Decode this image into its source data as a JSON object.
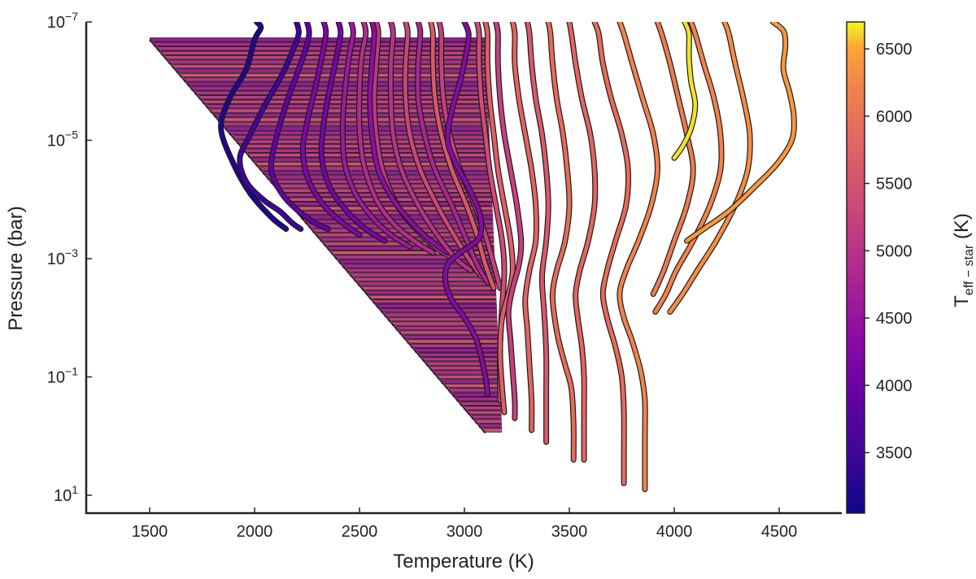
{
  "chart_data": {
    "type": "line",
    "xlabel": "Temperature (K)",
    "ylabel": "Pressure (bar)",
    "xlim": [
      1200,
      4800
    ],
    "ylim_log10": [
      -7,
      1.3
    ],
    "y_scale": "log",
    "x_ticks": [
      {
        "value": 1500,
        "label": "1500"
      },
      {
        "value": 2000,
        "label": "2000"
      },
      {
        "value": 2500,
        "label": "2500"
      },
      {
        "value": 3000,
        "label": "3000"
      },
      {
        "value": 3500,
        "label": "3500"
      },
      {
        "value": 4000,
        "label": "4000"
      },
      {
        "value": 4500,
        "label": "4500"
      }
    ],
    "y_ticks": [
      {
        "exp": -7,
        "base": "10",
        "sup": "−7"
      },
      {
        "exp": -5,
        "base": "10",
        "sup": "−5"
      },
      {
        "exp": -3,
        "base": "10",
        "sup": "−3"
      },
      {
        "exp": -1,
        "base": "10",
        "sup": "−1"
      },
      {
        "exp": 1,
        "base": "10",
        "sup": "1"
      }
    ],
    "colorbar": {
      "label_main": "T",
      "label_sub": "eff − star",
      "label_unit": " (K)",
      "range": [
        3050,
        6700
      ],
      "colormap": "plasma",
      "ticks": [
        {
          "value": 3500,
          "label": "3500"
        },
        {
          "value": 4000,
          "label": "4000"
        },
        {
          "value": 4500,
          "label": "4500"
        },
        {
          "value": 5000,
          "label": "5000"
        },
        {
          "value": 5500,
          "label": "5500"
        },
        {
          "value": 6000,
          "label": "6000"
        },
        {
          "value": 6500,
          "label": "6500"
        }
      ]
    },
    "series": [
      {
        "teff": 3200,
        "x": [
          2010,
          2030,
          2000,
          1960,
          1880,
          1840,
          1900,
          1980,
          2080,
          2150
        ],
        "y": [
          -7,
          -6.9,
          -6.7,
          -6.2,
          -5.7,
          -5.2,
          -4.6,
          -4.1,
          -3.7,
          -3.5
        ]
      },
      {
        "teff": 3500,
        "x": [
          2200,
          2210,
          2180,
          2130,
          2050,
          1980,
          1930,
          1960,
          2040,
          2120,
          2180,
          2220
        ],
        "y": [
          -7,
          -6.8,
          -6.5,
          -6.1,
          -5.6,
          -5.1,
          -4.7,
          -4.3,
          -4.0,
          -3.8,
          -3.6,
          -3.5
        ]
      },
      {
        "teff": 3900,
        "x": [
          2250,
          2260,
          2240,
          2200,
          2150,
          2100,
          2080,
          2130,
          2210,
          2290,
          2350
        ],
        "y": [
          -7,
          -6.8,
          -6.5,
          -6.1,
          -5.6,
          -5.0,
          -4.5,
          -4.1,
          -3.8,
          -3.6,
          -3.5
        ]
      },
      {
        "teff": 4200,
        "x": [
          2330,
          2340,
          2320,
          2290,
          2250,
          2230,
          2260,
          2330,
          2420,
          2500
        ],
        "y": [
          -7,
          -6.8,
          -6.4,
          -5.9,
          -5.3,
          -4.8,
          -4.3,
          -3.9,
          -3.6,
          -3.4
        ]
      },
      {
        "teff": 4100,
        "x": [
          2400,
          2410,
          2390,
          2360,
          2330,
          2320,
          2360,
          2440,
          2530,
          2620
        ],
        "y": [
          -7,
          -6.8,
          -6.4,
          -5.9,
          -5.3,
          -4.7,
          -4.2,
          -3.8,
          -3.5,
          -3.3
        ]
      },
      {
        "teff": 4600,
        "x": [
          2460,
          2470,
          2450,
          2430,
          2420,
          2430,
          2480,
          2560,
          2650,
          2740
        ],
        "y": [
          -7,
          -6.8,
          -6.4,
          -5.8,
          -5.2,
          -4.6,
          -4.1,
          -3.7,
          -3.4,
          -3.2
        ]
      },
      {
        "teff": 4900,
        "x": [
          2520,
          2530,
          2510,
          2500,
          2500,
          2520,
          2580,
          2660,
          2760,
          2850
        ],
        "y": [
          -7,
          -6.8,
          -6.4,
          -5.8,
          -5.2,
          -4.6,
          -4.0,
          -3.6,
          -3.3,
          -3.1
        ]
      },
      {
        "teff": 5100,
        "x": [
          2580,
          2590,
          2580,
          2570,
          2580,
          2610,
          2680,
          2770,
          2860,
          2950
        ],
        "y": [
          -7,
          -6.8,
          -6.3,
          -5.7,
          -5.1,
          -4.5,
          -3.9,
          -3.5,
          -3.2,
          -3.0
        ]
      },
      {
        "teff": 4400,
        "x": [
          2560,
          2570,
          2560,
          2550,
          2560,
          2590,
          2660,
          2750,
          2840,
          2920
        ],
        "y": [
          -7,
          -6.8,
          -6.3,
          -5.7,
          -5.1,
          -4.5,
          -4.0,
          -3.6,
          -3.3,
          -3.1
        ]
      },
      {
        "teff": 5000,
        "x": [
          2650,
          2660,
          2650,
          2650,
          2660,
          2700,
          2780,
          2870,
          2960,
          3030
        ],
        "y": [
          -7,
          -6.8,
          -6.3,
          -5.7,
          -5.1,
          -4.5,
          -3.9,
          -3.4,
          -3.0,
          -2.8
        ]
      },
      {
        "teff": 5300,
        "x": [
          2720,
          2730,
          2720,
          2720,
          2740,
          2790,
          2870,
          2950,
          3020,
          3080
        ],
        "y": [
          -7,
          -6.8,
          -6.3,
          -5.7,
          -5.1,
          -4.5,
          -3.9,
          -3.4,
          -3.0,
          -2.7
        ]
      },
      {
        "teff": 4800,
        "x": [
          2780,
          2790,
          2780,
          2780,
          2810,
          2860,
          2940,
          3000,
          3060,
          3110
        ],
        "y": [
          -7,
          -6.8,
          -6.3,
          -5.7,
          -5.1,
          -4.5,
          -3.9,
          -3.4,
          -2.9,
          -2.6
        ]
      },
      {
        "teff": 5600,
        "x": [
          2840,
          2850,
          2850,
          2860,
          2890,
          2940,
          3010,
          3060,
          3100,
          3140
        ],
        "y": [
          -7,
          -6.8,
          -6.3,
          -5.7,
          -5.1,
          -4.5,
          -3.9,
          -3.4,
          -2.9,
          -2.5
        ]
      },
      {
        "teff": 5200,
        "x": [
          2880,
          2890,
          2890,
          2900,
          2930,
          2980,
          3050,
          3100,
          3140,
          3170
        ],
        "y": [
          -7,
          -6.8,
          -6.3,
          -5.7,
          -5.1,
          -4.5,
          -3.9,
          -3.4,
          -2.9,
          -2.5
        ]
      },
      {
        "teff": 4300,
        "x": [
          3000,
          3020,
          3010,
          2980,
          2940,
          2920,
          2960,
          3020,
          3070,
          3080,
          3060,
          2980,
          2920,
          2910,
          2940,
          3000,
          3060,
          3100,
          3110
        ],
        "y": [
          -7,
          -6.8,
          -6.5,
          -6.0,
          -5.5,
          -5.0,
          -4.6,
          -4.2,
          -3.8,
          -3.5,
          -3.3,
          -3.1,
          -2.9,
          -2.6,
          -2.3,
          -2.0,
          -1.6,
          -1.0,
          -0.7
        ]
      },
      {
        "teff": 5400,
        "x": [
          3060,
          3070,
          3070,
          3080,
          3100,
          3120,
          3150,
          3180,
          3190,
          3180,
          3170,
          3170
        ],
        "y": [
          -7,
          -6.8,
          -6.3,
          -5.7,
          -5.1,
          -4.5,
          -3.9,
          -3.3,
          -2.8,
          -2.2,
          -1.5,
          -0.6
        ]
      },
      {
        "teff": 5700,
        "x": [
          3100,
          3110,
          3110,
          3120,
          3140,
          3160,
          3190,
          3220,
          3230,
          3210,
          3180,
          3170,
          3180,
          3190
        ],
        "y": [
          -7,
          -6.8,
          -6.3,
          -5.7,
          -5.1,
          -4.5,
          -3.9,
          -3.3,
          -2.8,
          -2.4,
          -2.0,
          -1.4,
          -0.8,
          -0.4
        ]
      },
      {
        "teff": 5200,
        "x": [
          3150,
          3160,
          3160,
          3170,
          3190,
          3220,
          3250,
          3270,
          3260,
          3230,
          3210,
          3220,
          3230,
          3240,
          3240
        ],
        "y": [
          -7,
          -6.8,
          -6.3,
          -5.7,
          -5.1,
          -4.5,
          -3.9,
          -3.3,
          -2.9,
          -2.5,
          -2.1,
          -1.6,
          -1.1,
          -0.6,
          -0.3
        ]
      },
      {
        "teff": 5800,
        "x": [
          3230,
          3240,
          3240,
          3260,
          3290,
          3320,
          3340,
          3340,
          3310,
          3290,
          3300,
          3310,
          3320,
          3320
        ],
        "y": [
          -7,
          -6.8,
          -6.3,
          -5.7,
          -5.1,
          -4.5,
          -3.9,
          -3.3,
          -2.8,
          -2.3,
          -1.8,
          -1.2,
          -0.6,
          -0.1
        ]
      },
      {
        "teff": 5600,
        "x": [
          3300,
          3310,
          3320,
          3340,
          3370,
          3390,
          3400,
          3390,
          3370,
          3380,
          3390,
          3390,
          3390
        ],
        "y": [
          -7,
          -6.8,
          -6.3,
          -5.7,
          -5.1,
          -4.5,
          -3.9,
          -3.3,
          -2.7,
          -2.1,
          -1.4,
          -0.7,
          0.1
        ]
      },
      {
        "teff": 5900,
        "x": [
          3400,
          3410,
          3420,
          3440,
          3470,
          3490,
          3500,
          3480,
          3440,
          3420,
          3430,
          3450,
          3480,
          3510,
          3520,
          3520
        ],
        "y": [
          -7,
          -6.8,
          -6.3,
          -5.7,
          -5.1,
          -4.5,
          -3.9,
          -3.3,
          -2.8,
          -2.4,
          -2.0,
          -1.6,
          -1.2,
          -0.8,
          -0.2,
          0.4
        ]
      },
      {
        "teff": 5800,
        "x": [
          3500,
          3510,
          3530,
          3560,
          3600,
          3620,
          3620,
          3590,
          3550,
          3530,
          3540,
          3560,
          3570,
          3570,
          3570
        ],
        "y": [
          -7,
          -6.8,
          -6.3,
          -5.7,
          -5.1,
          -4.5,
          -3.9,
          -3.3,
          -2.8,
          -2.4,
          -2.0,
          -1.5,
          -1.0,
          -0.4,
          0.4
        ]
      },
      {
        "teff": 5900,
        "x": [
          3620,
          3640,
          3660,
          3700,
          3750,
          3780,
          3770,
          3720,
          3680,
          3660,
          3680,
          3720,
          3750,
          3760,
          3760,
          3760
        ],
        "y": [
          -7,
          -6.8,
          -6.3,
          -5.7,
          -5.1,
          -4.5,
          -3.9,
          -3.3,
          -2.8,
          -2.4,
          -2.0,
          -1.5,
          -1.0,
          -0.4,
          0.3,
          0.8
        ]
      },
      {
        "teff": 6200,
        "x": [
          3740,
          3760,
          3800,
          3850,
          3900,
          3920,
          3890,
          3830,
          3770,
          3740,
          3760,
          3800,
          3840,
          3860,
          3860,
          3860,
          3860
        ],
        "y": [
          -7,
          -6.8,
          -6.3,
          -5.7,
          -5.1,
          -4.5,
          -3.9,
          -3.3,
          -2.8,
          -2.4,
          -2.0,
          -1.6,
          -1.1,
          -0.6,
          0,
          0.5,
          0.9
        ]
      },
      {
        "teff": 6100,
        "x": [
          3920,
          3940,
          3980,
          4020,
          4060,
          4090,
          4060,
          4000,
          3950,
          3900
        ],
        "y": [
          -7,
          -6.8,
          -6.3,
          -5.7,
          -5.1,
          -4.5,
          -3.9,
          -3.3,
          -2.8,
          -2.4
        ]
      },
      {
        "teff": 6200,
        "x": [
          4080,
          4100,
          4140,
          4190,
          4220,
          4220,
          4170,
          4090,
          4010,
          3960,
          3910
        ],
        "y": [
          -7,
          -6.8,
          -6.3,
          -5.7,
          -5.1,
          -4.5,
          -3.9,
          -3.3,
          -2.8,
          -2.4,
          -2.1
        ]
      },
      {
        "teff": 6300,
        "x": [
          4240,
          4260,
          4290,
          4330,
          4360,
          4350,
          4290,
          4200,
          4110,
          4040,
          3980
        ],
        "y": [
          -7,
          -6.8,
          -6.3,
          -5.7,
          -5.1,
          -4.5,
          -3.9,
          -3.3,
          -2.8,
          -2.4,
          -2.1
        ]
      },
      {
        "teff": 6400,
        "x": [
          4470,
          4520,
          4530,
          4520,
          4550,
          4570,
          4560,
          4490,
          4380,
          4260,
          4140,
          4060
        ],
        "y": [
          -7,
          -6.85,
          -6.6,
          -6.2,
          -5.8,
          -5.4,
          -5.0,
          -4.6,
          -4.2,
          -3.8,
          -3.5,
          -3.3
        ]
      },
      {
        "teff": 6650,
        "x": [
          4050,
          4070,
          4070,
          4080,
          4100,
          4080,
          4040,
          4000
        ],
        "y": [
          -7,
          -6.8,
          -6.4,
          -6.0,
          -5.6,
          -5.2,
          -4.9,
          -4.7
        ]
      }
    ]
  }
}
